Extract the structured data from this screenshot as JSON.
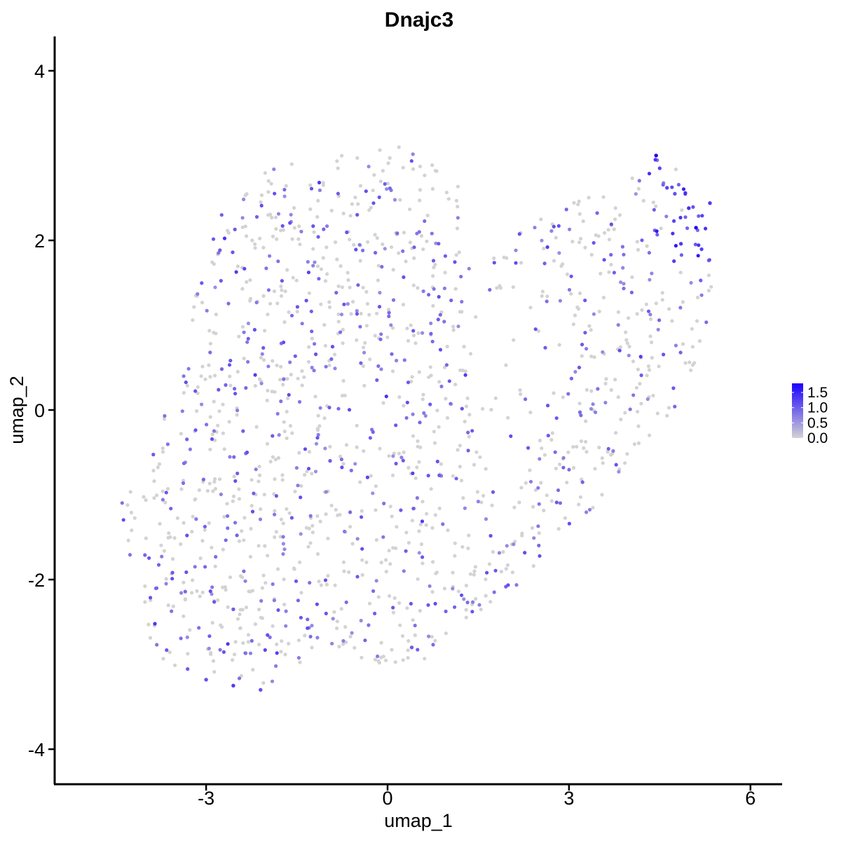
{
  "chart_data": {
    "type": "scatter",
    "title": "Dnajc3",
    "xlabel": "umap_1",
    "ylabel": "umap_2",
    "xlim": [
      -5.4,
      6.6
    ],
    "ylim": [
      -4.35,
      4.4
    ],
    "x_ticks": [
      -3,
      0,
      3,
      6
    ],
    "y_ticks": [
      -4,
      -2,
      0,
      2,
      4
    ],
    "grid": false,
    "color_scale": {
      "low_color": "#d3d3d3",
      "high_color": "#1c00ff",
      "min": 0.0,
      "max": 1.8,
      "ticks": [
        "0.0",
        "0.5",
        "1.0",
        "1.5"
      ],
      "legend_position": "right"
    },
    "highlight_points": [
      {
        "x": 4.44,
        "y": 3.0,
        "value": 1.8
      },
      {
        "x": 5.1,
        "y": 2.15,
        "value": 1.75
      },
      {
        "x": 4.98,
        "y": 2.38,
        "value": 1.4
      },
      {
        "x": 4.85,
        "y": 1.96,
        "value": 1.3
      },
      {
        "x": 5.33,
        "y": 2.44,
        "value": 1.3
      },
      {
        "x": 4.62,
        "y": 2.62,
        "value": 1.2
      },
      {
        "x": 4.5,
        "y": 2.85,
        "value": 1.2
      },
      {
        "x": -2.55,
        "y": -3.25,
        "value": 1.3
      },
      {
        "x": -3.0,
        "y": -3.18,
        "value": 1.1
      },
      {
        "x": -2.1,
        "y": -3.3,
        "value": 1.1
      },
      {
        "x": -2.55,
        "y": -2.35,
        "value": 1.0
      },
      {
        "x": 0.4,
        "y": -2.8,
        "value": 1.0
      },
      {
        "x": -0.95,
        "y": -0.6,
        "value": 1.0
      },
      {
        "x": 4.75,
        "y": 2.55,
        "value": 1.1
      }
    ]
  }
}
